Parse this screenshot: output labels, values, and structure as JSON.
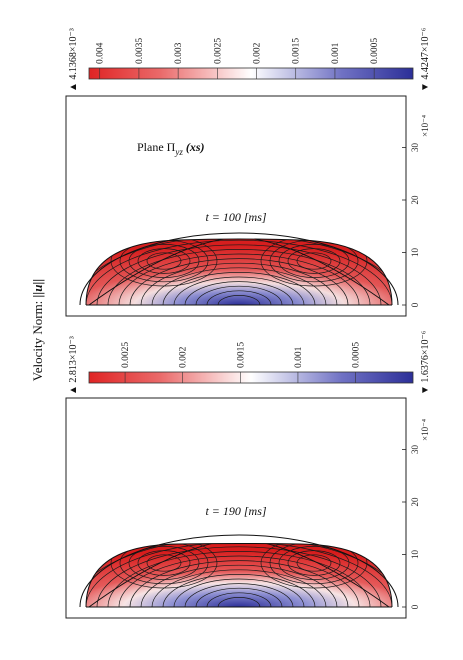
{
  "figure": {
    "quantity_label": "Velocity Norm: ||u||",
    "quantity_label_plain": "Velocity Norm: ",
    "quantity_label_sym": "||u||",
    "scale_note": "×10⁻⁴"
  },
  "panels": [
    {
      "id": "top",
      "plane_label": "Plane Π",
      "plane_sub": "yz",
      "plane_arg": "(xs)",
      "time_label": "t = 100 [ms]",
      "max_label": "▲ 4.1368×10⁻³",
      "min_label": "▼ 4.4247×10⁻⁶",
      "colorbar_ticks": [
        "0.004",
        "0.0035",
        "0.003",
        "0.0025",
        "0.002",
        "0.0015",
        "0.001",
        "0.0005"
      ],
      "axis_ticks": [
        "0",
        "10",
        "20",
        "30"
      ]
    },
    {
      "id": "bottom",
      "time_label": "t = 190 [ms]",
      "max_label": "▲ 2.813×10⁻³",
      "min_label": "▼ 1.6376×10⁻⁶",
      "colorbar_ticks": [
        "0.0025",
        "0.002",
        "0.0015",
        "0.001",
        "0.0005"
      ],
      "axis_ticks": [
        "0",
        "10",
        "20",
        "30"
      ]
    }
  ],
  "chart_data": [
    {
      "type": "heatmap",
      "title": "t = 100 [ms]",
      "quantity": "Velocity Norm: ||u||",
      "color_range": [
        4.4247e-06,
        0.0041368
      ],
      "colormap": [
        "#3b3fb5",
        "#ffffff",
        "#e02020"
      ],
      "colorbar_ticks": [
        0.004,
        0.0035,
        0.003,
        0.0025,
        0.002,
        0.0015,
        0.001,
        0.0005
      ],
      "axis_ticks": [
        0,
        10,
        20,
        30
      ],
      "max_value": 0.0041368,
      "min_value": 4.4247e-06
    },
    {
      "type": "heatmap",
      "title": "t = 190 [ms]",
      "quantity": "Velocity Norm: ||u||",
      "color_range": [
        1.6376e-06,
        0.002813
      ],
      "colormap": [
        "#3b3fb5",
        "#ffffff",
        "#e02020"
      ],
      "colorbar_ticks": [
        0.0025,
        0.002,
        0.0015,
        0.001,
        0.0005
      ],
      "axis_ticks": [
        0,
        10,
        20,
        30
      ],
      "max_value": 0.002813,
      "min_value": 1.6376e-06
    }
  ]
}
